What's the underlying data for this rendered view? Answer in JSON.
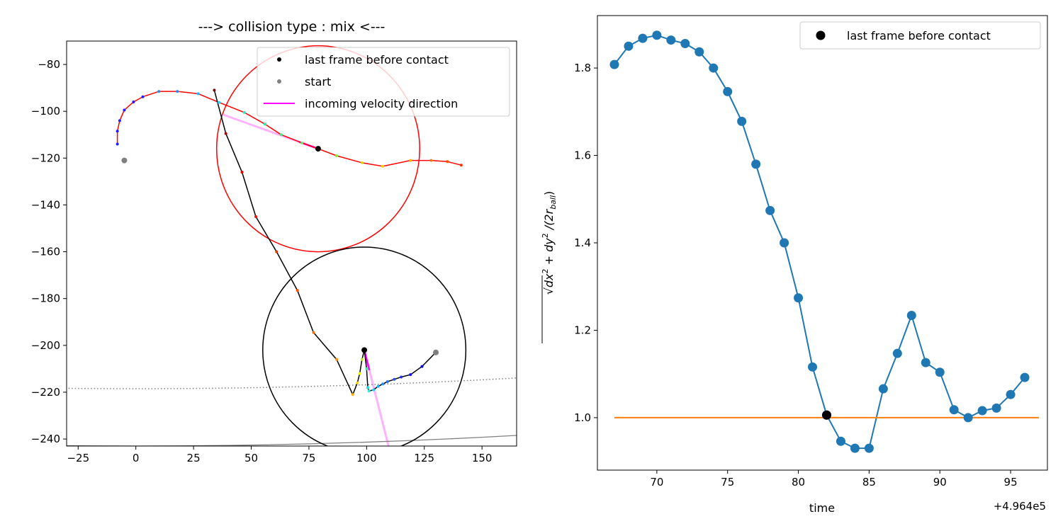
{
  "chart_data": [
    {
      "type": "scatter",
      "title": "---> collision type : mix <---",
      "xlabel": "",
      "ylabel": "",
      "xlim": [
        -30,
        165
      ],
      "ylim": [
        -243,
        -70
      ],
      "xticks": [
        -25,
        0,
        25,
        50,
        75,
        100,
        125,
        150
      ],
      "yticks": [
        -80,
        -100,
        -120,
        -140,
        -160,
        -180,
        -200,
        -220,
        -240
      ],
      "grid": false,
      "legend_position": "top-right",
      "legend": [
        {
          "label": "last frame before contact",
          "color": "#000000",
          "kind": "dot"
        },
        {
          "label": "start",
          "color": "#808080",
          "kind": "dot"
        },
        {
          "label": "incoming velocity direction",
          "color": "#ff00ff",
          "kind": "line"
        }
      ],
      "series": [
        {
          "color": "#ff0000",
          "points": [
            [
              -8,
              -114
            ],
            [
              -8,
              -108.5
            ],
            [
              -7,
              -104
            ],
            [
              -5,
              -99.5
            ],
            [
              -1,
              -96
            ],
            [
              3,
              -93.8
            ],
            [
              10,
              -91.5
            ],
            [
              18,
              -91.5
            ],
            [
              27,
              -92.5
            ],
            [
              36,
              -96.2
            ],
            [
              47,
              -100.5
            ],
            [
              56,
              -105.5
            ],
            [
              63,
              -110
            ],
            [
              72,
              -113.5
            ],
            [
              79,
              -116
            ],
            [
              87,
              -119
            ],
            [
              98,
              -122
            ],
            [
              107,
              -123.5
            ],
            [
              119,
              -121
            ],
            [
              128,
              -121
            ],
            [
              135,
              -121.5
            ],
            [
              141,
              -123
            ]
          ],
          "point_colors": [
            "#1f1fff",
            "#1f1fff",
            "#1f1fff",
            "#1f1fff",
            "#1f1fff",
            "#1f1fff",
            "#1f8fff",
            "#1f8fff",
            "#20b8ff",
            "#20d0ff",
            "#20e8d0",
            "#20f0a0",
            "#40f080",
            "#60f060",
            "#000000",
            "#80f020",
            "#e0e000",
            "#ffd000",
            "#ffb000",
            "#ff8000",
            "#ff5000",
            "#ff3000"
          ],
          "start": [
            -5,
            -121
          ],
          "last_frame_before_contact": [
            79,
            -116
          ],
          "velocity_direction": [
            [
              79,
              -116
            ],
            [
              38,
              -101.5
            ]
          ],
          "circle": {
            "cx": 79,
            "cy": -116,
            "r": 44,
            "color": "#ff0000"
          }
        },
        {
          "color": "#000000",
          "points": [
            [
              34,
              -91
            ],
            [
              39,
              -109.5
            ],
            [
              46,
              -126
            ],
            [
              52,
              -145
            ],
            [
              61,
              -160
            ],
            [
              70,
              -176.5
            ],
            [
              77,
              -194.5
            ],
            [
              87,
              -206
            ],
            [
              94,
              -221
            ],
            [
              96,
              -216
            ],
            [
              97,
              -212
            ],
            [
              98,
              -206
            ],
            [
              99,
              -202
            ],
            [
              100,
              -210
            ],
            [
              100.5,
              -218
            ],
            [
              101,
              -219.5
            ],
            [
              103,
              -219
            ],
            [
              105,
              -217.5
            ],
            [
              107,
              -216.5
            ],
            [
              109,
              -215.5
            ],
            [
              112,
              -214.5
            ],
            [
              115,
              -213.5
            ],
            [
              119,
              -212.5
            ],
            [
              124,
              -209
            ],
            [
              130,
              -203
            ]
          ],
          "point_colors": [
            "#800000",
            "#c00000",
            "#e00000",
            "#f01000",
            "#f03000",
            "#ff5000",
            "#ff7000",
            "#ff9000",
            "#ffb000",
            "#ffd000",
            "#f0f000",
            "#c0f020",
            "#000000",
            "#40f0a0",
            "#20e0e0",
            "#20f0f0",
            "#20d0ff",
            "#20b0ff",
            "#2090ff",
            "#2070ff",
            "#2050ff",
            "#2030ff",
            "#1010ff",
            "#0000d0",
            "#000080"
          ],
          "start": [
            130,
            -203
          ],
          "last_frame_before_contact": [
            99,
            -202
          ],
          "velocity_direction": [
            [
              99,
              -202
            ],
            [
              110,
              -245
            ]
          ],
          "circle": {
            "cx": 99,
            "cy": -202,
            "r": 44,
            "color": "#000000"
          }
        }
      ],
      "arena_arcs": [
        {
          "center": [
            0,
            2750
          ],
          "r": 2993,
          "color": "#808080",
          "style": "solid"
        },
        {
          "center": [
            0,
            2750
          ],
          "r": 2968.5,
          "color": "#808080",
          "style": "dotted"
        }
      ]
    },
    {
      "type": "line",
      "title": "",
      "xlabel": "time",
      "ylabel_parts": [
        "√",
        "dx",
        "2",
        " + dy",
        "2",
        " /(2r",
        "ball",
        ")"
      ],
      "x_offset_label": "+4.964e5",
      "xlim": [
        65.8,
        97.6
      ],
      "ylim": [
        0.88,
        1.92
      ],
      "xticks": [
        70,
        75,
        80,
        85,
        90,
        95
      ],
      "yticks": [
        1.0,
        1.2,
        1.4,
        1.6,
        1.8
      ],
      "grid": false,
      "legend_position": "top-right",
      "legend": [
        {
          "label": "last frame before contact",
          "color": "#000000",
          "kind": "dot"
        }
      ],
      "x": [
        67,
        68,
        69,
        70,
        71,
        72,
        73,
        74,
        75,
        76,
        77,
        78,
        79,
        80,
        81,
        82,
        83,
        84,
        85,
        86,
        87,
        88,
        89,
        90,
        91,
        92,
        93,
        94,
        95,
        96
      ],
      "series": [
        {
          "color": "#1f77b4",
          "values": [
            1.808,
            1.85,
            1.868,
            1.875,
            1.864,
            1.856,
            1.837,
            1.8,
            1.746,
            1.678,
            1.58,
            1.474,
            1.4,
            1.274,
            1.116,
            1.006,
            0.946,
            0.93,
            0.93,
            1.066,
            1.147,
            1.234,
            1.126,
            1.104,
            1.018,
            1.0,
            1.016,
            1.022,
            1.053,
            1.092
          ]
        },
        {
          "color": "#ff7f0e",
          "x": [
            67,
            97
          ],
          "values": [
            1.0,
            1.0
          ]
        }
      ],
      "last_frame_before_contact": [
        82,
        1.006
      ]
    }
  ]
}
